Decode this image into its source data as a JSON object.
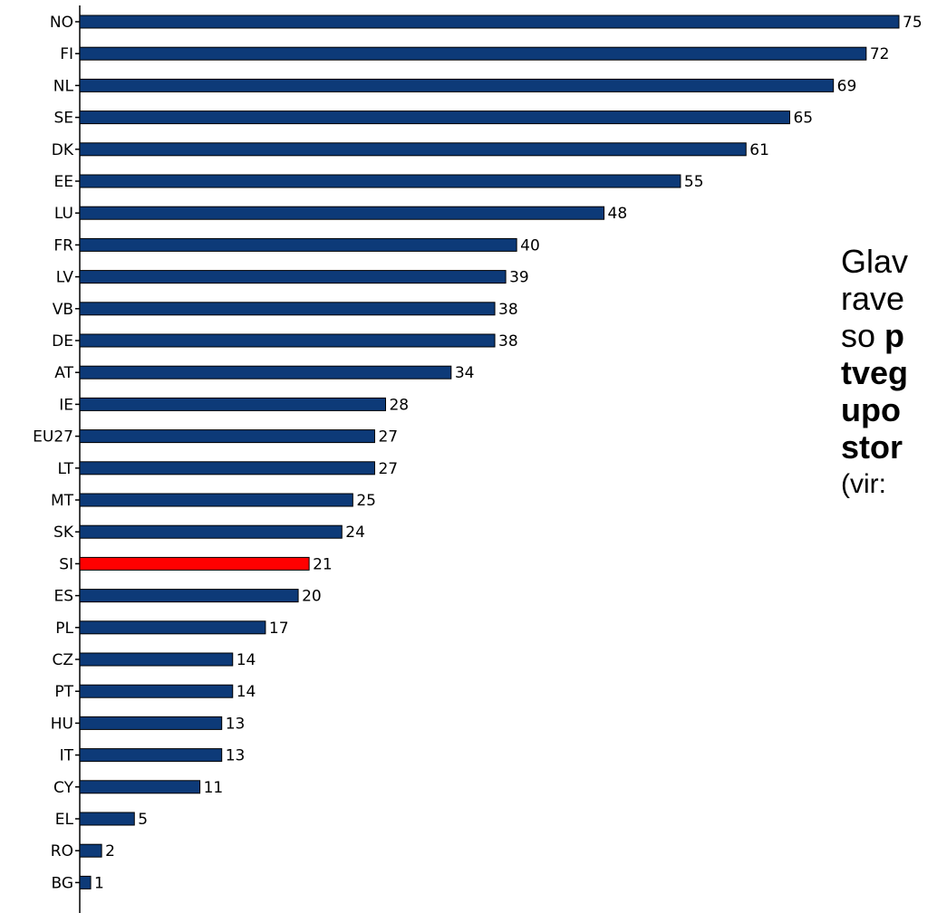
{
  "chart_data": {
    "type": "bar",
    "orientation": "horizontal",
    "categories": [
      "NO",
      "FI",
      "NL",
      "SE",
      "DK",
      "EE",
      "LU",
      "FR",
      "LV",
      "VB",
      "DE",
      "AT",
      "IE",
      "EU27",
      "LT",
      "MT",
      "SK",
      "SI",
      "ES",
      "PL",
      "CZ",
      "PT",
      "HU",
      "IT",
      "CY",
      "EL",
      "RO",
      "BG"
    ],
    "values": [
      75,
      72,
      69,
      65,
      61,
      55,
      48,
      40,
      39,
      38,
      38,
      34,
      28,
      27,
      27,
      25,
      24,
      21,
      20,
      17,
      14,
      14,
      13,
      13,
      11,
      5,
      2,
      1
    ],
    "highlight": "SI",
    "colors": {
      "bar": "#0d3a78",
      "highlight": "#ff0000",
      "axis": "#000000"
    },
    "xlim": [
      0,
      75
    ]
  },
  "side_text": {
    "line1": "Glav",
    "line2": "rave",
    "line3_prefix": "so ",
    "line3_bold": "p",
    "line4": "tveg",
    "line5": "upo",
    "line6": "stor",
    "line7": "(vir:"
  }
}
